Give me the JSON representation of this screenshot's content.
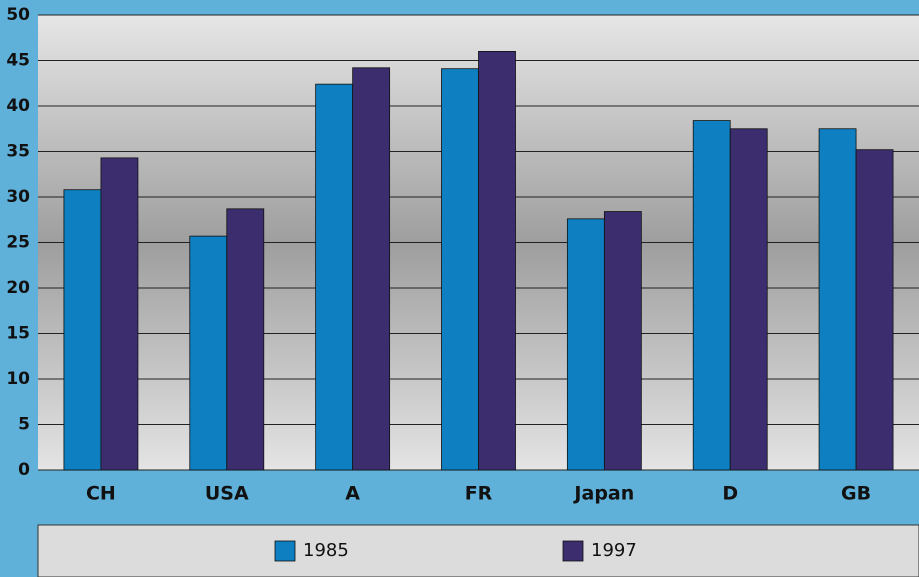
{
  "chart_data": {
    "type": "bar",
    "categories": [
      "CH",
      "USA",
      "A",
      "FR",
      "Japan",
      "D",
      "GB"
    ],
    "series": [
      {
        "name": "1985",
        "color": "#0e7fc0",
        "values": [
          30.8,
          25.7,
          42.4,
          44.1,
          27.6,
          38.4,
          37.5
        ]
      },
      {
        "name": "1997",
        "color": "#3b2d6e",
        "values": [
          34.3,
          28.7,
          44.2,
          46.0,
          28.4,
          37.5,
          35.2
        ]
      }
    ],
    "ylim": [
      0,
      50
    ],
    "yticks": [
      0,
      5,
      10,
      15,
      20,
      25,
      30,
      35,
      40,
      45,
      50
    ],
    "grid": true,
    "legend": "bottom"
  }
}
